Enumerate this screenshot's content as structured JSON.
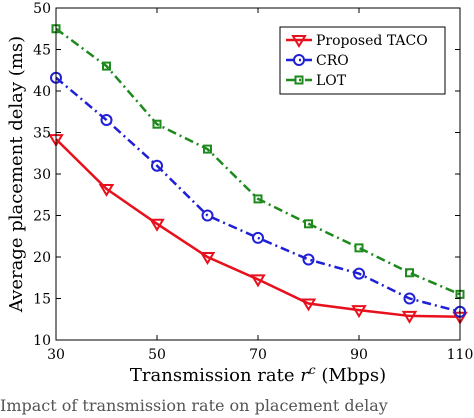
{
  "chart_data": {
    "type": "line",
    "xlabel": "Transmission rate",
    "xlabel_symbol": "r",
    "xlabel_sup": "c",
    "xlabel_unit": "(Mbps)",
    "ylabel": "Average placement delay (ms)",
    "xlim": [
      30,
      110
    ],
    "ylim": [
      10,
      50
    ],
    "xticks": [
      30,
      50,
      70,
      90,
      110
    ],
    "xtick_labels": [
      "30",
      "50",
      "70",
      "90",
      "110"
    ],
    "yticks": [
      10,
      15,
      20,
      25,
      30,
      35,
      40,
      45,
      50
    ],
    "ytick_labels": [
      "10",
      "15",
      "20",
      "25",
      "30",
      "35",
      "40",
      "45",
      "50"
    ],
    "grid": false,
    "legend_position": "top-right",
    "x": [
      30,
      40,
      50,
      60,
      70,
      80,
      90,
      100,
      110
    ],
    "series": [
      {
        "name": "Proposed TACO",
        "color": "#e8101c",
        "dash": "solid",
        "marker": "triangle-down",
        "values": [
          34.2,
          28.2,
          24.0,
          20.0,
          17.3,
          14.4,
          13.6,
          12.9,
          12.8
        ]
      },
      {
        "name": "CRO",
        "color": "#1f1fd6",
        "dash": "dashdot",
        "marker": "circle",
        "values": [
          41.6,
          36.5,
          31.0,
          25.0,
          22.3,
          19.7,
          18.0,
          15.0,
          13.4
        ]
      },
      {
        "name": "LOT",
        "color": "#1e8a1e",
        "dash": "dashdot",
        "marker": "square",
        "values": [
          47.5,
          43.0,
          36.0,
          33.0,
          27.0,
          24.0,
          21.1,
          18.1,
          15.5
        ]
      }
    ]
  },
  "caption": "Impact of transmission rate on placement delay"
}
